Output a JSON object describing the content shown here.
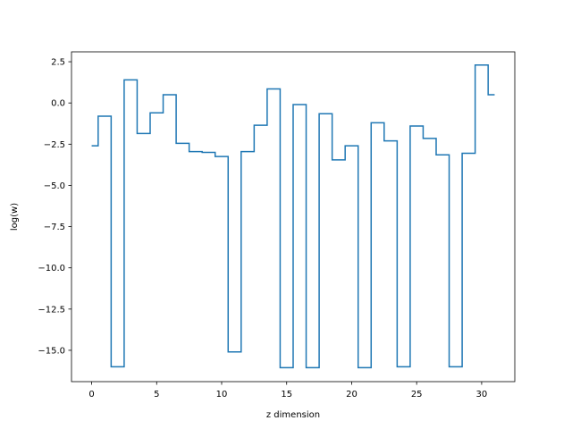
{
  "chart_data": {
    "type": "line",
    "drawstyle": "steps-mid",
    "xlabel": "z dimension",
    "ylabel": "log(w)",
    "xlim": [
      -1.55,
      32.55
    ],
    "ylim": [
      -16.9,
      3.1
    ],
    "grid": false,
    "x_ticks": [
      0,
      5,
      10,
      15,
      20,
      25,
      30
    ],
    "x_tick_labels": [
      "0",
      "5",
      "10",
      "15",
      "20",
      "25",
      "30"
    ],
    "y_ticks": [
      2.5,
      0,
      -2.5,
      -5,
      -7.5,
      -10,
      -12.5,
      -15
    ],
    "y_tick_labels": [
      "2.5",
      "0.0",
      "−2.5",
      "−5.0",
      "−7.5",
      "−10.0",
      "−12.5",
      "−15.0"
    ],
    "series": [
      {
        "color": "#1f77b4",
        "x": [
          0,
          1,
          2,
          3,
          4,
          5,
          6,
          7,
          8,
          9,
          10,
          11,
          12,
          13,
          14,
          15,
          16,
          17,
          18,
          19,
          20,
          21,
          22,
          23,
          24,
          25,
          26,
          27,
          28,
          29,
          30,
          31
        ],
        "y": [
          -2.6,
          -0.8,
          -16.0,
          1.4,
          -1.85,
          -0.6,
          0.5,
          -2.45,
          -2.95,
          -3.0,
          -3.25,
          -15.1,
          -2.95,
          -1.35,
          0.85,
          -16.05,
          -0.1,
          -16.05,
          -0.65,
          -3.45,
          -2.6,
          -16.05,
          -1.2,
          -2.3,
          -16.0,
          -1.4,
          -2.15,
          -3.15,
          -16.0,
          -3.05,
          2.3,
          0.5
        ]
      }
    ]
  }
}
